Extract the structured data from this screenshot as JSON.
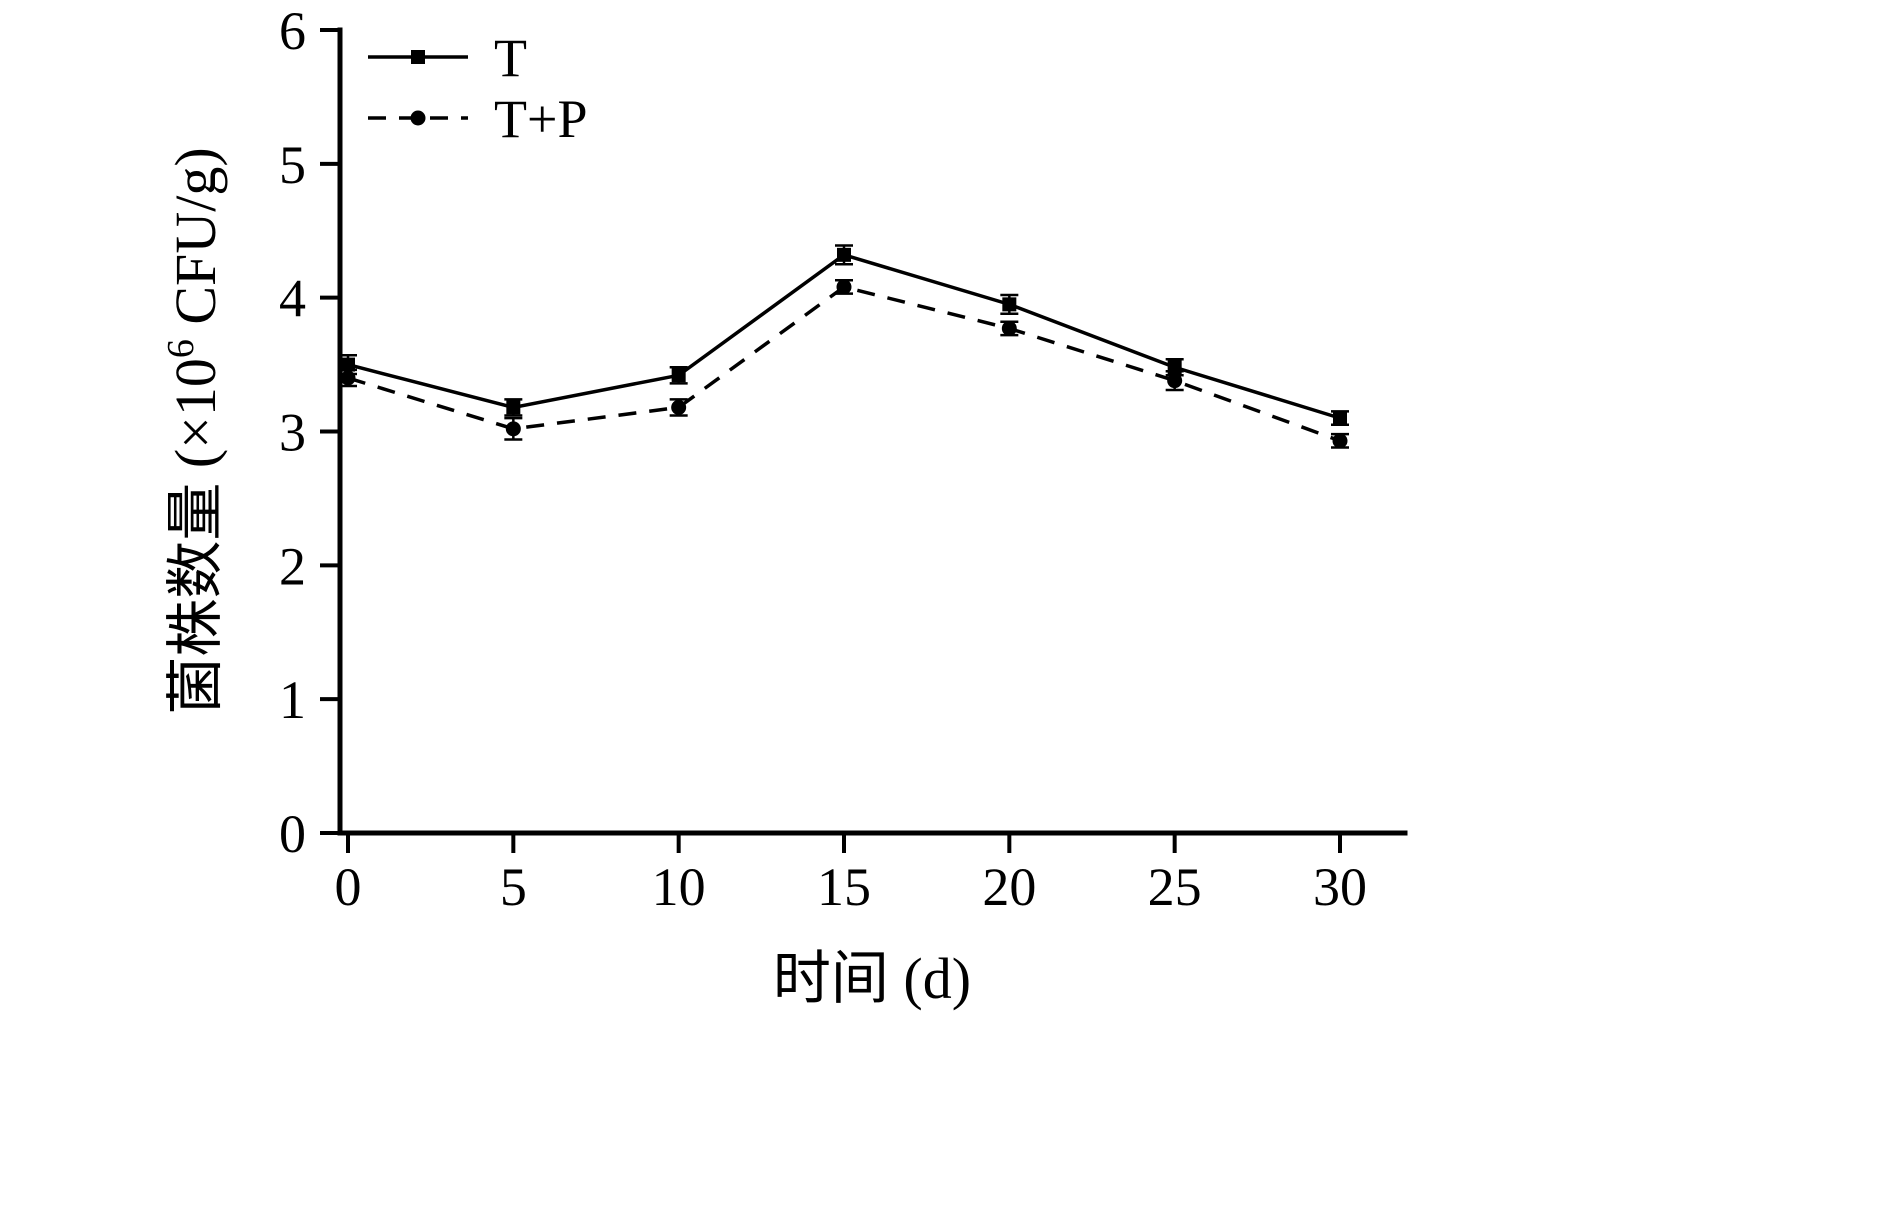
{
  "chart_data": {
    "type": "line",
    "title": "",
    "xlabel": "时间 (d)",
    "ylabel": "菌株数量 (×10⁶ CFU/g)",
    "ylabel_parts": {
      "prefix": "菌株数量 (×10",
      "superscript": "6",
      "suffix": " CFU/g)"
    },
    "x": [
      0,
      5,
      10,
      15,
      20,
      25,
      30
    ],
    "x_ticks": [
      0,
      5,
      10,
      15,
      20,
      25,
      30
    ],
    "y_ticks": [
      0,
      1,
      2,
      3,
      4,
      5,
      6
    ],
    "xlim": [
      0,
      32
    ],
    "ylim": [
      0,
      6
    ],
    "grid": false,
    "legend_position": "top-left-inside",
    "series": [
      {
        "name": "T",
        "marker": "square",
        "line_style": "solid",
        "values": [
          3.5,
          3.18,
          3.42,
          4.32,
          3.95,
          3.48,
          3.1
        ],
        "errors": [
          0.07,
          0.06,
          0.06,
          0.07,
          0.07,
          0.06,
          0.05
        ]
      },
      {
        "name": "T+P",
        "marker": "circle",
        "line_style": "dashed",
        "values": [
          3.4,
          3.02,
          3.18,
          4.08,
          3.77,
          3.38,
          2.93
        ],
        "errors": [
          0.06,
          0.08,
          0.06,
          0.05,
          0.05,
          0.07,
          0.05
        ]
      }
    ],
    "colors": {
      "line": "#000000",
      "background": "#ffffff"
    }
  }
}
